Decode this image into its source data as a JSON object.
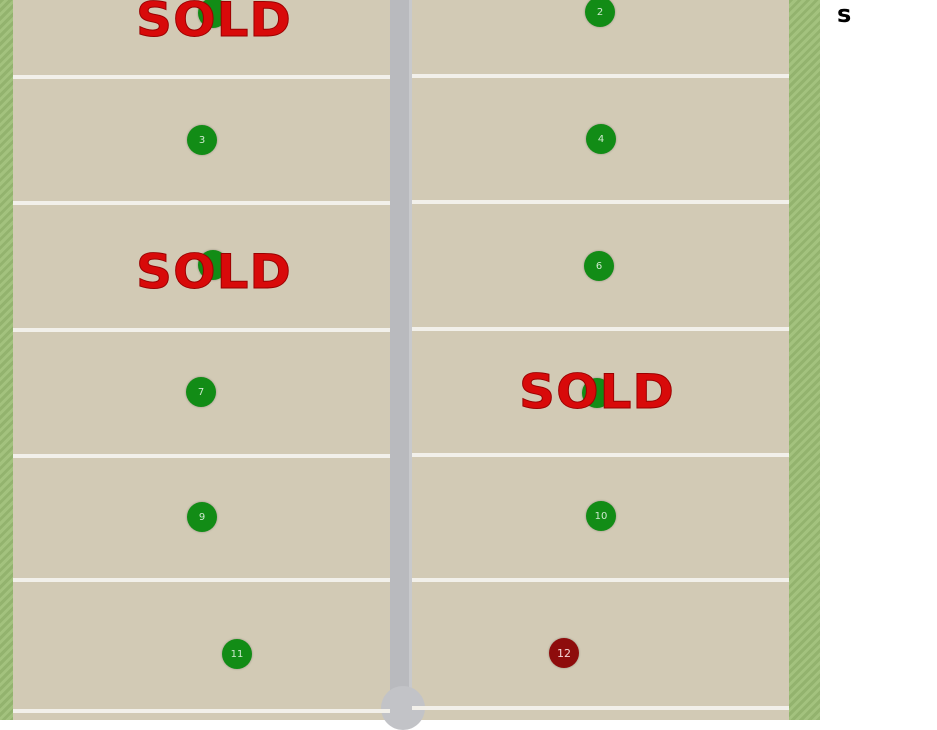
{
  "sidebar_text": "s",
  "sold_label": "SOLD",
  "colors": {
    "available": "#128c16",
    "reserved": "#8e0c0c",
    "sold_text": "#d80a0a"
  },
  "lots": [
    {
      "label": "",
      "status": "sold"
    },
    {
      "label": "2",
      "status": "available"
    },
    {
      "label": "3",
      "status": "available"
    },
    {
      "label": "4",
      "status": "available"
    },
    {
      "label": "",
      "status": "sold"
    },
    {
      "label": "6",
      "status": "available"
    },
    {
      "label": "7",
      "status": "available"
    },
    {
      "label": "",
      "status": "sold"
    },
    {
      "label": "9",
      "status": "available"
    },
    {
      "label": "10",
      "status": "available"
    },
    {
      "label": "11",
      "status": "available"
    },
    {
      "label": "12",
      "status": "reserved"
    }
  ]
}
